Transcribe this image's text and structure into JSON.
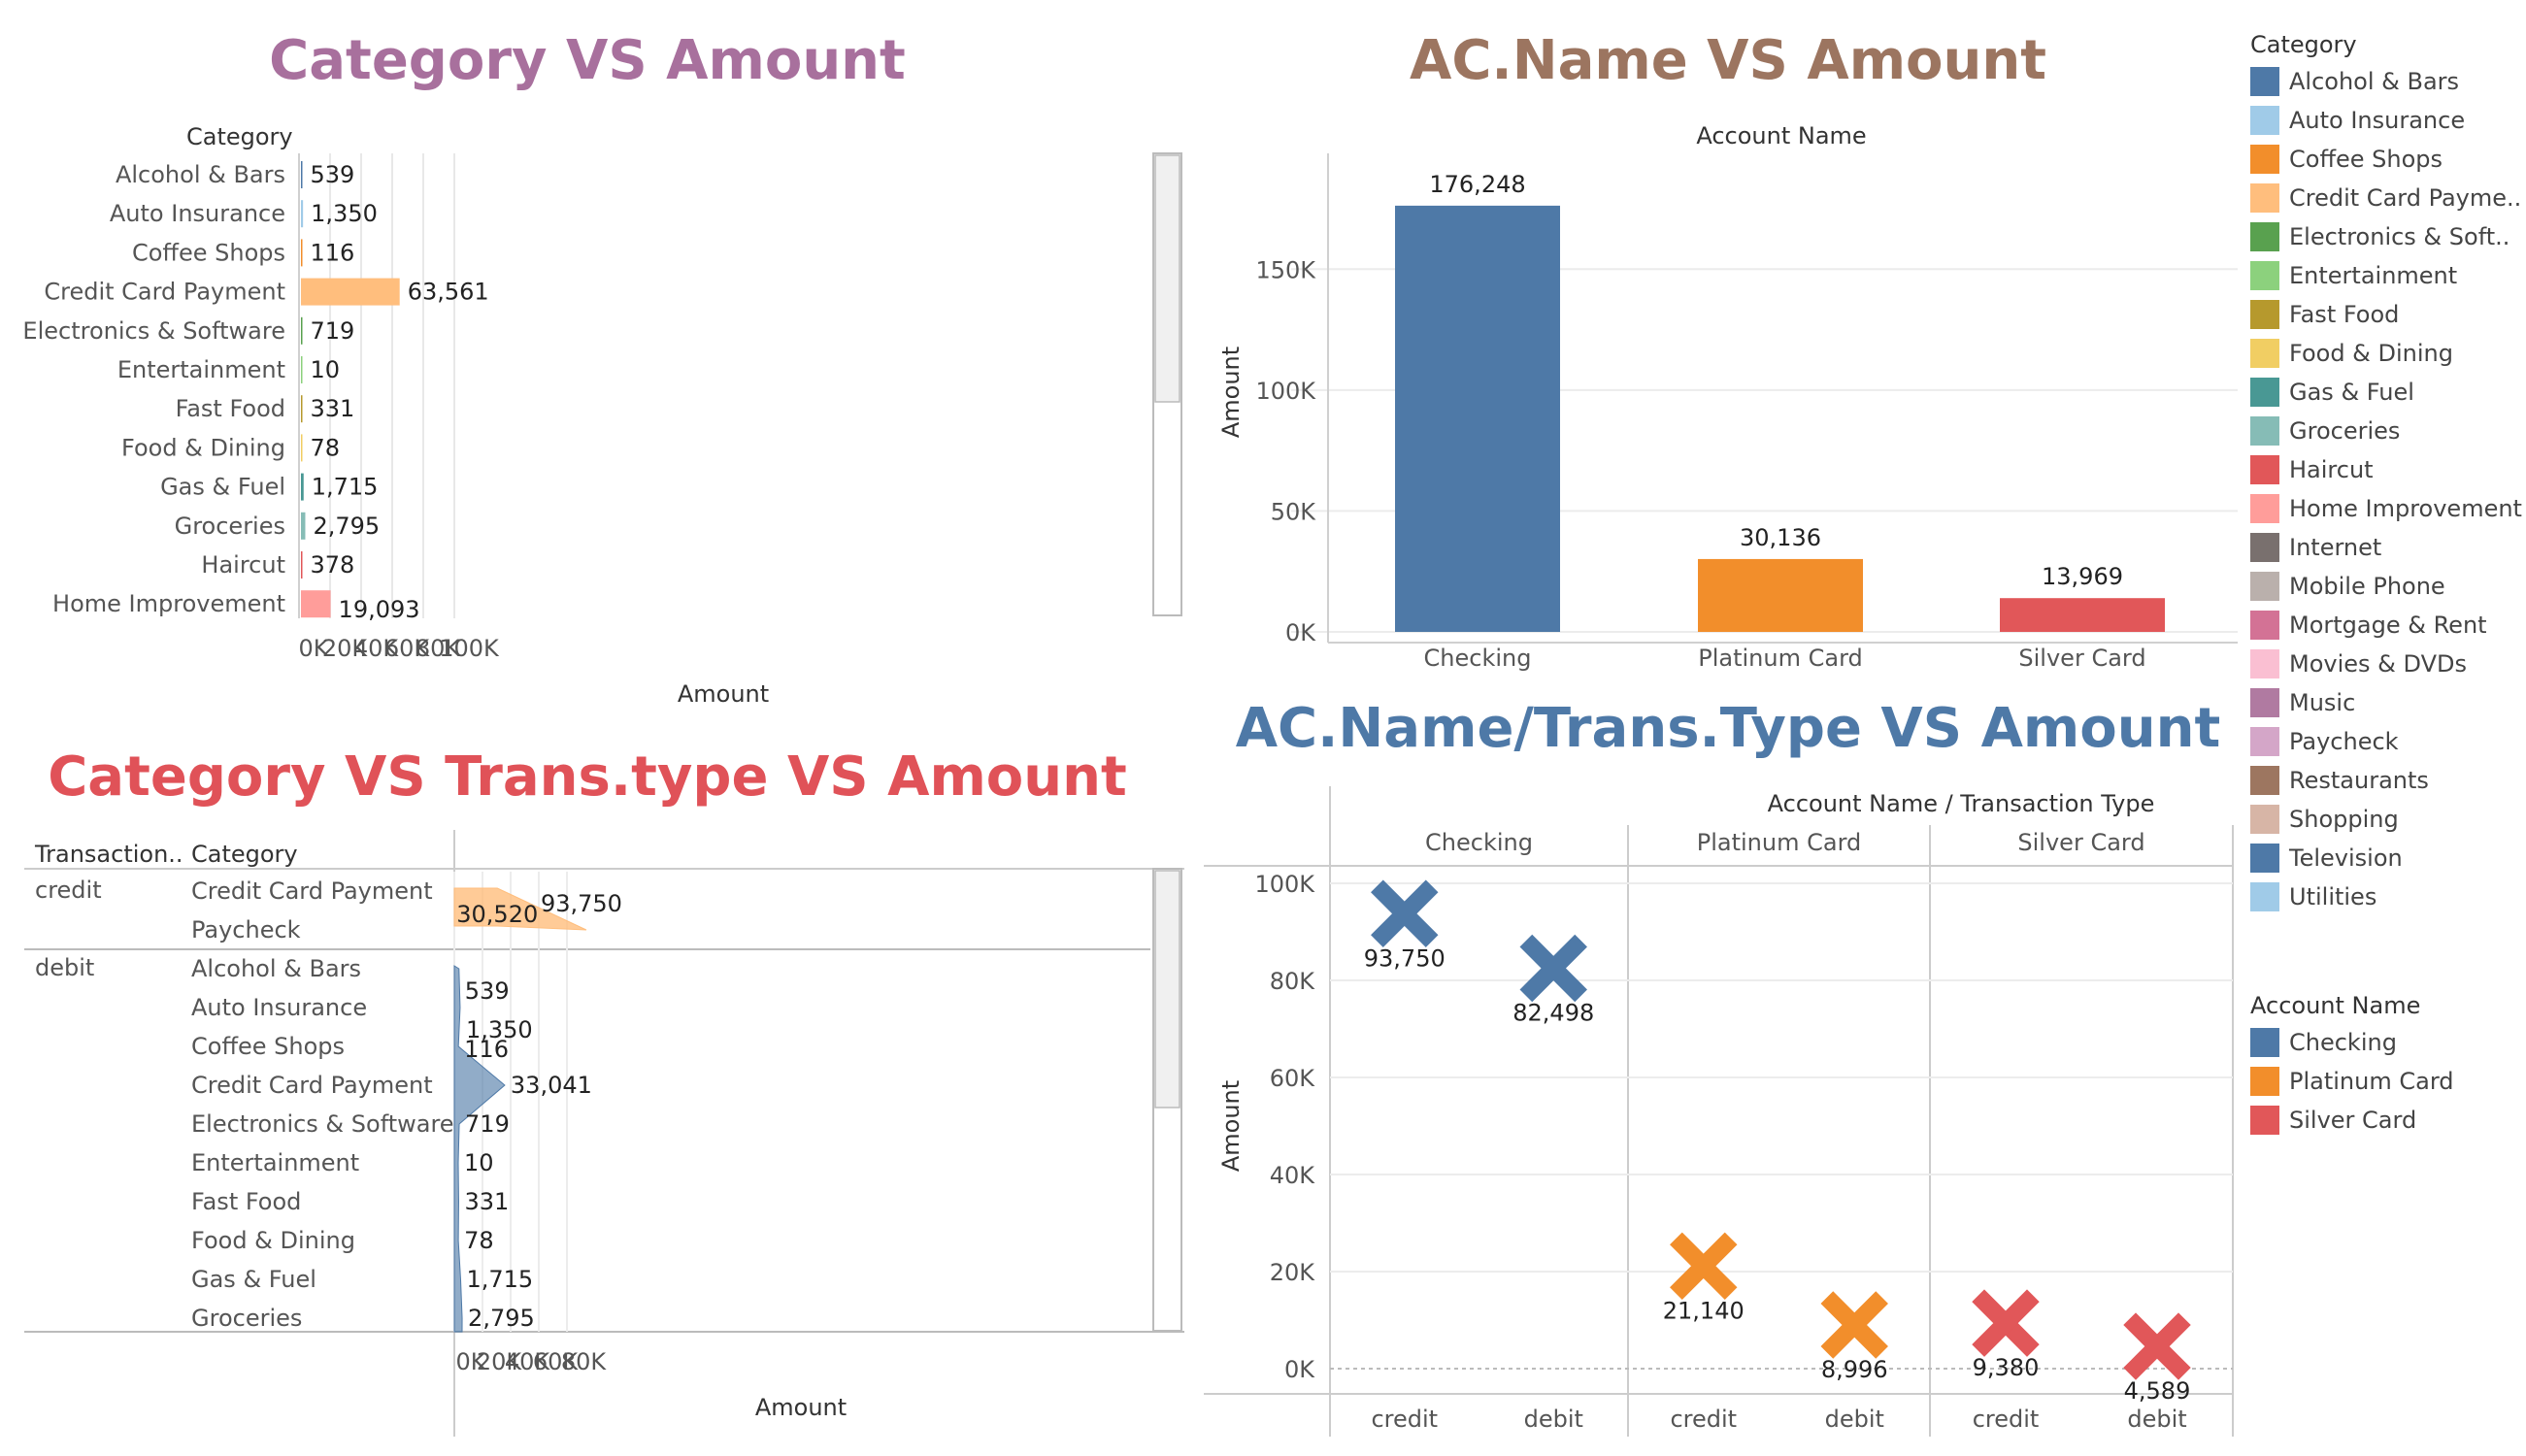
{
  "titles": {
    "c1": "Category VS Amount",
    "c2": "AC.Name VS Amount",
    "c3": "Category VS Trans.type VS Amount",
    "c4": "AC.Name/Trans.Type VS Amount"
  },
  "title_colors": {
    "c1": "#a8709d",
    "c2": "#9c7560",
    "c3": "#e05258",
    "c4": "#4e79a7"
  },
  "legend_category": {
    "header": "Category",
    "items": [
      {
        "label": "Alcohol & Bars",
        "color": "#4e79a7"
      },
      {
        "label": "Auto Insurance",
        "color": "#a0cbe8"
      },
      {
        "label": "Coffee Shops",
        "color": "#f28e2b"
      },
      {
        "label": "Credit Card Payme..",
        "color": "#ffbe7d"
      },
      {
        "label": "Electronics & Soft..",
        "color": "#59a14f"
      },
      {
        "label": "Entertainment",
        "color": "#8cd17d"
      },
      {
        "label": "Fast Food",
        "color": "#b6992d"
      },
      {
        "label": "Food & Dining",
        "color": "#f1ce63"
      },
      {
        "label": "Gas & Fuel",
        "color": "#499894"
      },
      {
        "label": "Groceries",
        "color": "#86bcb6"
      },
      {
        "label": "Haircut",
        "color": "#e15759"
      },
      {
        "label": "Home Improvement",
        "color": "#ff9d9a"
      },
      {
        "label": "Internet",
        "color": "#79706e"
      },
      {
        "label": "Mobile Phone",
        "color": "#bab0ac"
      },
      {
        "label": "Mortgage & Rent",
        "color": "#d37295"
      },
      {
        "label": "Movies & DVDs",
        "color": "#fabfd2"
      },
      {
        "label": "Music",
        "color": "#b07aa1"
      },
      {
        "label": "Paycheck",
        "color": "#d4a6c8"
      },
      {
        "label": "Restaurants",
        "color": "#9d7660"
      },
      {
        "label": "Shopping",
        "color": "#d7b5a6"
      },
      {
        "label": "Television",
        "color": "#4e79a7"
      },
      {
        "label": "Utilities",
        "color": "#a0cbe8"
      }
    ]
  },
  "legend_account": {
    "header": "Account Name",
    "items": [
      {
        "label": "Checking",
        "color": "#4e79a7"
      },
      {
        "label": "Platinum Card",
        "color": "#f28e2b"
      },
      {
        "label": "Silver Card",
        "color": "#e15759"
      }
    ]
  },
  "chart_data": [
    {
      "type": "bar",
      "orientation": "horizontal",
      "title": "Category VS Amount",
      "row_header": "Category",
      "xlabel": "Amount",
      "xlim": [
        0,
        110000
      ],
      "xticks": [
        0,
        20000,
        40000,
        60000,
        80000,
        100000
      ],
      "xtick_labels": [
        "0K",
        "20K",
        "40K",
        "60K",
        "80K",
        "100K"
      ],
      "grid": true,
      "categories": [
        "Alcohol & Bars",
        "Auto Insurance",
        "Coffee Shops",
        "Credit Card Payment",
        "Electronics & Software",
        "Entertainment",
        "Fast Food",
        "Food & Dining",
        "Gas & Fuel",
        "Groceries",
        "Haircut",
        "Home Improvement"
      ],
      "values": [
        539,
        1350,
        116,
        63561,
        719,
        10,
        331,
        78,
        1715,
        2795,
        378,
        19093
      ],
      "value_labels": [
        "539",
        "1,350",
        "116",
        "63,561",
        "719",
        "10",
        "331",
        "78",
        "1,715",
        "2,795",
        "378",
        "19,093"
      ],
      "colors": [
        "#4e79a7",
        "#a0cbe8",
        "#f28e2b",
        "#ffbe7d",
        "#59a14f",
        "#8cd17d",
        "#b6992d",
        "#f1ce63",
        "#499894",
        "#86bcb6",
        "#e15759",
        "#ff9d9a"
      ]
    },
    {
      "type": "bar",
      "title": "AC.Name VS Amount",
      "column_header": "Account Name",
      "ylabel": "Amount",
      "ylim": [
        0,
        190000
      ],
      "yticks": [
        0,
        50000,
        100000,
        150000
      ],
      "ytick_labels": [
        "0K",
        "50K",
        "100K",
        "150K"
      ],
      "categories": [
        "Checking",
        "Platinum Card",
        "Silver Card"
      ],
      "values": [
        176248,
        30136,
        13969
      ],
      "value_labels": [
        "176,248",
        "30,136",
        "13,969"
      ],
      "colors": [
        "#4e79a7",
        "#f28e2b",
        "#e15759"
      ]
    },
    {
      "type": "area",
      "title": "Category VS Trans.type VS Amount",
      "row_headers": [
        "Transaction..",
        "Category"
      ],
      "xlabel": "Amount",
      "xlim": [
        0,
        100000
      ],
      "xticks": [
        0,
        20000,
        40000,
        60000,
        80000
      ],
      "xtick_labels": [
        "0K",
        "20K",
        "40K",
        "60K",
        "80K"
      ],
      "groups": [
        {
          "name": "credit",
          "color": "#ffbe7d",
          "categories": [
            "Credit Card Payment",
            "Paycheck"
          ],
          "values": [
            30520,
            93750
          ],
          "value_labels": [
            "30,520",
            "93,750"
          ]
        },
        {
          "name": "debit",
          "color": "#4e79a7",
          "categories": [
            "Alcohol & Bars",
            "Auto Insurance",
            "Coffee Shops",
            "Credit Card Payment",
            "Electronics & Software",
            "Entertainment",
            "Fast Food",
            "Food & Dining",
            "Gas & Fuel",
            "Groceries"
          ],
          "values": [
            539,
            1350,
            116,
            33041,
            719,
            10,
            331,
            78,
            1715,
            2795
          ],
          "value_labels": [
            "539",
            "1,350",
            "116",
            "33,041",
            "719",
            "10",
            "331",
            "78",
            "1,715",
            "2,795"
          ]
        }
      ]
    },
    {
      "type": "scatter",
      "title": "AC.Name/Trans.Type VS Amount",
      "column_header": "Account Name / Transaction Type",
      "ylabel": "Amount",
      "ylim": [
        -5000,
        105000
      ],
      "yticks": [
        0,
        20000,
        40000,
        60000,
        80000,
        100000
      ],
      "ytick_labels": [
        "0K",
        "20K",
        "40K",
        "60K",
        "80K",
        "100K"
      ],
      "panels": [
        {
          "name": "Checking",
          "color": "#4e79a7",
          "x": [
            "credit",
            "debit"
          ],
          "values": [
            93750,
            82498
          ],
          "value_labels": [
            "93,750",
            "82,498"
          ]
        },
        {
          "name": "Platinum Card",
          "color": "#f28e2b",
          "x": [
            "credit",
            "debit"
          ],
          "values": [
            21140,
            8996
          ],
          "value_labels": [
            "21,140",
            "8,996"
          ]
        },
        {
          "name": "Silver Card",
          "color": "#e15759",
          "x": [
            "credit",
            "debit"
          ],
          "values": [
            9380,
            4589
          ],
          "value_labels": [
            "9,380",
            "4,589"
          ]
        }
      ]
    }
  ]
}
